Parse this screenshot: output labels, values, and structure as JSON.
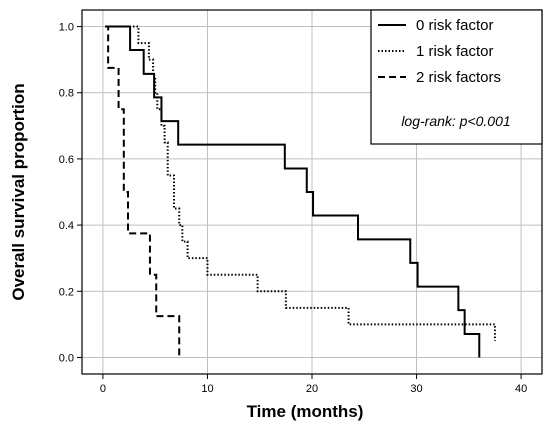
{
  "chart_data": {
    "type": "line",
    "step": true,
    "xlabel": "Time (months)",
    "ylabel": "Overall survival proportion",
    "xlim": [
      -2,
      42
    ],
    "ylim": [
      -0.05,
      1.05
    ],
    "xticks": [
      0,
      10,
      20,
      30,
      40
    ],
    "yticks": [
      0.0,
      0.2,
      0.4,
      0.6,
      0.8,
      1.0
    ],
    "xtick_labels": [
      "0",
      "10",
      "20",
      "30",
      "40"
    ],
    "ytick_labels": [
      "0.0",
      "0.2",
      "0.4",
      "0.6",
      "0.8",
      "1.0"
    ],
    "grid": true,
    "legend_position": "top-right",
    "annotation": "log-rank: p<0.001",
    "series": [
      {
        "name": "0 risk factor",
        "style": "solid",
        "x": [
          0.2,
          2.6,
          3.9,
          4.9,
          5.6,
          6.6,
          7.2,
          12.3,
          17.4,
          19.5,
          20.1,
          24.4,
          29.4,
          30.1,
          31.0,
          34.0,
          34.6,
          36.0
        ],
        "y": [
          1.0,
          0.929,
          0.857,
          0.786,
          0.714,
          0.714,
          0.643,
          0.643,
          0.571,
          0.5,
          0.429,
          0.357,
          0.286,
          0.214,
          0.214,
          0.143,
          0.071,
          0.0
        ]
      },
      {
        "name": "1 risk factor",
        "style": "dotted",
        "x": [
          0.2,
          3.4,
          4.4,
          4.8,
          5.0,
          5.2,
          5.6,
          5.9,
          6.2,
          6.8,
          7.3,
          7.6,
          8.1,
          10.0,
          14.8,
          17.5,
          23.5,
          37.5
        ],
        "y": [
          1.0,
          0.95,
          0.9,
          0.85,
          0.8,
          0.75,
          0.7,
          0.65,
          0.55,
          0.45,
          0.4,
          0.35,
          0.3,
          0.25,
          0.2,
          0.15,
          0.1,
          0.05
        ]
      },
      {
        "name": "2 risk factors",
        "style": "dashed",
        "x": [
          0.2,
          0.5,
          1.5,
          2.0,
          2.4,
          4.5,
          5.1,
          7.3
        ],
        "y": [
          1.0,
          0.875,
          0.75,
          0.5,
          0.375,
          0.25,
          0.125,
          0.0
        ]
      }
    ]
  }
}
